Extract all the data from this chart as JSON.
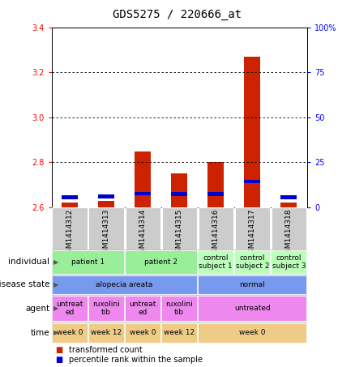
{
  "title": "GDS5275 / 220666_at",
  "samples": [
    "GSM1414312",
    "GSM1414313",
    "GSM1414314",
    "GSM1414315",
    "GSM1414316",
    "GSM1414317",
    "GSM1414318"
  ],
  "red_values": [
    2.62,
    2.63,
    2.85,
    2.75,
    2.8,
    3.27,
    2.62
  ],
  "blue_values": [
    2.645,
    2.648,
    2.662,
    2.66,
    2.66,
    2.715,
    2.645
  ],
  "bar_bottom": 2.6,
  "ylim": [
    2.6,
    3.4
  ],
  "yticks_left": [
    2.6,
    2.8,
    3.0,
    3.2,
    3.4
  ],
  "rows": {
    "individual": {
      "label": "individual",
      "groups": [
        {
          "text": "patient 1",
          "start": 0,
          "end": 2,
          "color": "#99ee99"
        },
        {
          "text": "patient 2",
          "start": 2,
          "end": 4,
          "color": "#99ee99"
        },
        {
          "text": "control\nsubject 1",
          "start": 4,
          "end": 5,
          "color": "#bbffbb"
        },
        {
          "text": "control\nsubject 2",
          "start": 5,
          "end": 6,
          "color": "#bbffbb"
        },
        {
          "text": "control\nsubject 3",
          "start": 6,
          "end": 7,
          "color": "#bbffbb"
        }
      ]
    },
    "disease_state": {
      "label": "disease state",
      "groups": [
        {
          "text": "alopecia areata",
          "start": 0,
          "end": 4,
          "color": "#7799ee"
        },
        {
          "text": "normal",
          "start": 4,
          "end": 7,
          "color": "#7799ee"
        }
      ]
    },
    "agent": {
      "label": "agent",
      "groups": [
        {
          "text": "untreat\ned",
          "start": 0,
          "end": 1,
          "color": "#ee88ee"
        },
        {
          "text": "ruxolini\ntib",
          "start": 1,
          "end": 2,
          "color": "#ee88ee"
        },
        {
          "text": "untreat\ned",
          "start": 2,
          "end": 3,
          "color": "#ee88ee"
        },
        {
          "text": "ruxolini\ntib",
          "start": 3,
          "end": 4,
          "color": "#ee88ee"
        },
        {
          "text": "untreated",
          "start": 4,
          "end": 7,
          "color": "#ee88ee"
        }
      ]
    },
    "time": {
      "label": "time",
      "groups": [
        {
          "text": "week 0",
          "start": 0,
          "end": 1,
          "color": "#eecc88"
        },
        {
          "text": "week 12",
          "start": 1,
          "end": 2,
          "color": "#eecc88"
        },
        {
          "text": "week 0",
          "start": 2,
          "end": 3,
          "color": "#eecc88"
        },
        {
          "text": "week 12",
          "start": 3,
          "end": 4,
          "color": "#eecc88"
        },
        {
          "text": "week 0",
          "start": 4,
          "end": 7,
          "color": "#eecc88"
        }
      ]
    }
  },
  "bar_color_red": "#cc2200",
  "bar_color_blue": "#0000cc",
  "bar_width": 0.45,
  "bg_color_sample": "#cccccc",
  "title_fontsize": 10,
  "tick_fontsize": 7,
  "sample_fontsize": 6.5,
  "row_label_fontsize": 7.5,
  "annotation_fontsize": 6.5
}
